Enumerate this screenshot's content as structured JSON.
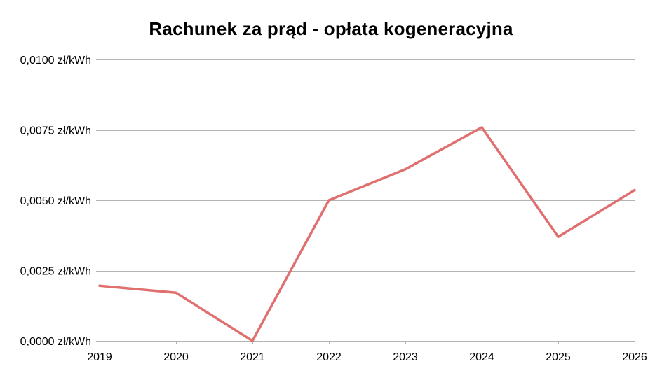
{
  "chart_data": {
    "type": "line",
    "title": "Rachunek za prąd - opłata kogeneracyjna",
    "xlabel": "",
    "ylabel": "",
    "categories": [
      "2019",
      "2020",
      "2021",
      "2022",
      "2023",
      "2024",
      "2025",
      "2026"
    ],
    "series": [
      {
        "values": [
          0.00196,
          0.00171,
          0.0,
          0.005,
          0.0061,
          0.00759,
          0.0037,
          0.00536
        ],
        "color": "#e07070"
      }
    ],
    "ylim": [
      0,
      0.01
    ],
    "yticks": [
      0.0,
      0.0025,
      0.005,
      0.0075,
      0.01
    ],
    "ytick_labels": [
      "0,0000 zł/kWh",
      "0,0025 zł/kWh",
      "0,0050 zł/kWh",
      "0,0075 zł/kWh",
      "0,0100 zł/kWh"
    ],
    "grid": "horizontal",
    "grid_color": "#b3b3b3",
    "legend": "none"
  }
}
